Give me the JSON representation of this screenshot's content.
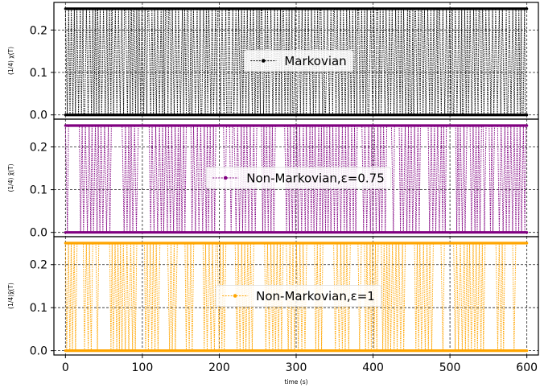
{
  "chart_data": {
    "type": "line",
    "grid": true,
    "xlabel": "time (s)",
    "xlim": [
      -15,
      615
    ],
    "xticks": [
      0,
      100,
      200,
      300,
      400,
      500,
      600
    ],
    "panels": [
      {
        "ylabel": "(1/4) χ(T)",
        "ylim": [
          -0.01,
          0.265
        ],
        "yticks": [
          "0.0",
          "0.1",
          "0.2"
        ],
        "legend_position": "center",
        "series": [
          {
            "name": "Markovian",
            "color": "#000000",
            "low": 0.0,
            "high": 0.25,
            "marker": "point",
            "line_style": "dotted"
          }
        ]
      },
      {
        "ylabel": "(1/4) χ̃(T)",
        "ylim": [
          -0.01,
          0.265
        ],
        "yticks": [
          "0.0",
          "0.1",
          "0.2"
        ],
        "legend_position": "center",
        "series": [
          {
            "name": "Non-Markovian,ε=0.75",
            "color": "#800080",
            "low": 0.0,
            "high": 0.25,
            "marker": "point",
            "line_style": "dotted"
          }
        ]
      },
      {
        "ylabel": "(1/4)χ̃(T)",
        "ylim": [
          -0.01,
          0.265
        ],
        "yticks": [
          "0.0",
          "0.1",
          "0.2"
        ],
        "legend_position": "center",
        "series": [
          {
            "name": "Non-Markovian,ε=1",
            "color": "#FFA500",
            "low": 0.0,
            "high": 0.25,
            "marker": "point",
            "line_style": "dotted"
          }
        ]
      }
    ]
  }
}
